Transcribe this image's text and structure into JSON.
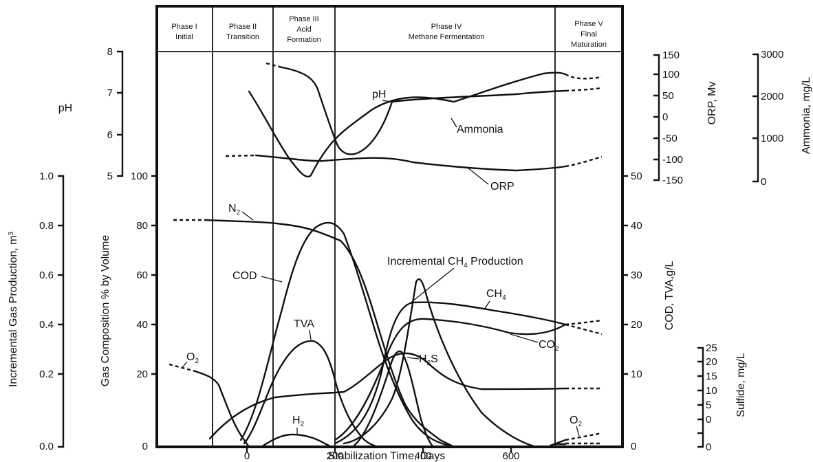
{
  "phases": [
    {
      "line1": "Phase I",
      "line2": "Initial",
      "line3": ""
    },
    {
      "line1": "Phase II",
      "line2": "Transition",
      "line3": ""
    },
    {
      "line1": "Phase III",
      "line2": "Acid",
      "line3": "Formation"
    },
    {
      "line1": "Phase IV",
      "line2": "Methane Fermentation",
      "line3": ""
    },
    {
      "line1": "Phase V",
      "line2": "Final",
      "line3": "Maturation"
    }
  ],
  "axes": {
    "ph": {
      "title": "pH",
      "ticks": [
        "8",
        "7",
        "6",
        "5"
      ]
    },
    "gas_production": {
      "title": "Incremental Gas Production, m",
      "title_sup": "3",
      "ticks": [
        "1.0",
        "0.8",
        "0.6",
        "0.4",
        "0.2",
        "0.0"
      ]
    },
    "gas_composition": {
      "title": "Gas Composition % by Volume",
      "ticks": [
        "100",
        "80",
        "60",
        "40",
        "20",
        "0"
      ]
    },
    "orp": {
      "title": "ORP, Mv",
      "ticks": [
        "150",
        "100",
        "50",
        "0",
        "-50",
        "-100",
        "-150"
      ]
    },
    "ammonia": {
      "title": "Ammonia, mg/L",
      "ticks": [
        "3000",
        "2000",
        "1000",
        "0"
      ]
    },
    "cod_tva": {
      "title": "COD, TVA,g/L",
      "ticks": [
        "50",
        "40",
        "30",
        "20",
        "10",
        "0"
      ]
    },
    "sulfide": {
      "title": "Sulfide, mg/L",
      "ticks": [
        "25",
        "20",
        "15",
        "10",
        "5",
        "0"
      ]
    },
    "time": {
      "title": "Stabilization Time, Days",
      "ticks": [
        "0",
        "200",
        "400",
        "600"
      ]
    }
  },
  "curve_labels": {
    "ph": "pH",
    "ammonia": "Ammonia",
    "orp": "ORP",
    "n2_base": "N",
    "n2_sub": "2",
    "cod": "COD",
    "tva": "TVA",
    "h2_base": "H",
    "h2_sub": "2",
    "o2_base": "O",
    "o2_sub": "2",
    "o2_late_base": "O",
    "o2_late_sub": "2",
    "ch4_prod_base": "Incremental CH",
    "ch4_prod_sub": "4",
    "ch4_prod_tail": " Production",
    "ch4_base": "CH",
    "ch4_sub": "4",
    "co2_base": "CO",
    "co2_sub": "2",
    "h2s_base": "H",
    "h2s_sub": "2",
    "h2s_tail": "S"
  }
}
